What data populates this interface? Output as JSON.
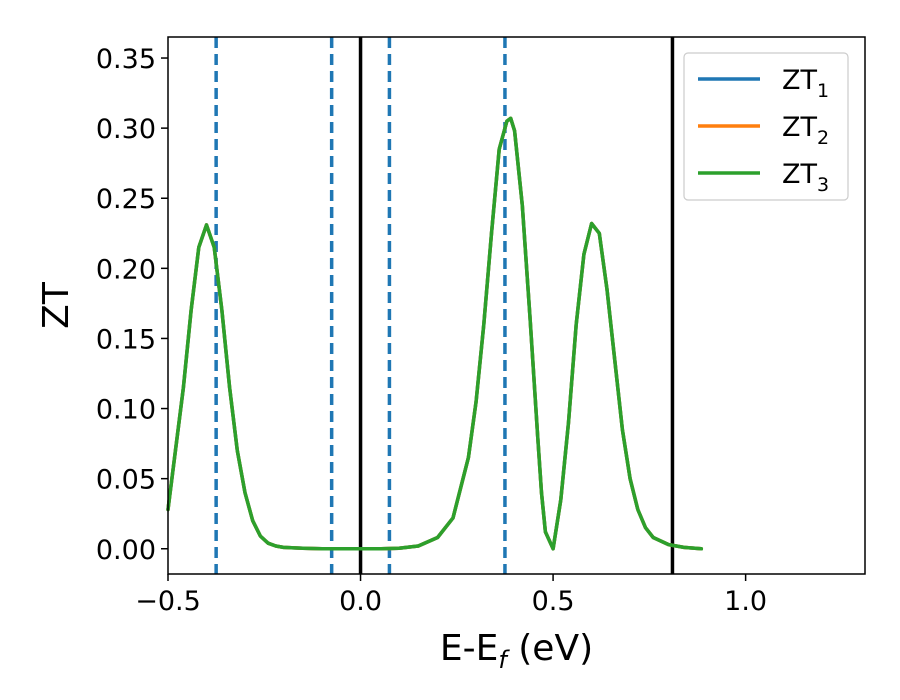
{
  "chart_data": {
    "type": "line",
    "xlabel": "E-E",
    "xlabel_sub": "f",
    "xlabel_unit": " (eV)",
    "ylabel": "ZT",
    "xlim": [
      -0.5,
      1.31
    ],
    "ylim": [
      -0.018,
      0.365
    ],
    "xticks": [
      -0.5,
      0.0,
      0.5,
      1.0
    ],
    "xtick_labels": [
      "−0.5",
      "0.0",
      "0.5",
      "1.0"
    ],
    "yticks": [
      0.0,
      0.05,
      0.1,
      0.15,
      0.2,
      0.25,
      0.3,
      0.35
    ],
    "ytick_labels": [
      "0.00",
      "0.05",
      "0.10",
      "0.15",
      "0.20",
      "0.25",
      "0.30",
      "0.35"
    ],
    "grid": false,
    "legend_position": "top-right",
    "vlines_solid": [
      0.0,
      0.81
    ],
    "vlines_dashed": [
      -0.375,
      -0.075,
      0.075,
      0.375
    ],
    "x": [
      -0.5,
      -0.46,
      -0.44,
      -0.42,
      -0.4,
      -0.38,
      -0.36,
      -0.34,
      -0.32,
      -0.3,
      -0.28,
      -0.26,
      -0.24,
      -0.22,
      -0.2,
      -0.15,
      -0.1,
      -0.05,
      0.0,
      0.05,
      0.1,
      0.15,
      0.2,
      0.24,
      0.28,
      0.3,
      0.32,
      0.34,
      0.36,
      0.38,
      0.39,
      0.4,
      0.42,
      0.44,
      0.46,
      0.47,
      0.48,
      0.5,
      0.52,
      0.54,
      0.56,
      0.58,
      0.6,
      0.62,
      0.64,
      0.66,
      0.68,
      0.7,
      0.72,
      0.74,
      0.76,
      0.8,
      0.84,
      0.885
    ],
    "series": [
      {
        "name": "ZT",
        "name_sub": "1",
        "color": "#1f77b4",
        "values": [
          0.028,
          0.115,
          0.17,
          0.215,
          0.231,
          0.215,
          0.17,
          0.115,
          0.07,
          0.04,
          0.02,
          0.009,
          0.004,
          0.002,
          0.001,
          0.0003,
          0.0,
          0.0,
          0.0,
          0.0,
          0.0003,
          0.002,
          0.008,
          0.022,
          0.065,
          0.105,
          0.16,
          0.225,
          0.285,
          0.305,
          0.307,
          0.298,
          0.245,
          0.165,
          0.08,
          0.04,
          0.012,
          0.0,
          0.035,
          0.09,
          0.16,
          0.21,
          0.232,
          0.225,
          0.185,
          0.135,
          0.085,
          0.05,
          0.028,
          0.015,
          0.008,
          0.003,
          0.001,
          0.0
        ]
      },
      {
        "name": "ZT",
        "name_sub": "2",
        "color": "#ff7f0e",
        "values": [
          0.028,
          0.115,
          0.17,
          0.215,
          0.231,
          0.215,
          0.17,
          0.115,
          0.07,
          0.04,
          0.02,
          0.009,
          0.004,
          0.002,
          0.001,
          0.0003,
          0.0,
          0.0,
          0.0,
          0.0,
          0.0003,
          0.002,
          0.008,
          0.022,
          0.065,
          0.105,
          0.16,
          0.225,
          0.285,
          0.305,
          0.307,
          0.298,
          0.245,
          0.165,
          0.08,
          0.04,
          0.012,
          0.0,
          0.035,
          0.09,
          0.16,
          0.21,
          0.232,
          0.225,
          0.185,
          0.135,
          0.085,
          0.05,
          0.028,
          0.015,
          0.008,
          0.003,
          0.001,
          0.0
        ]
      },
      {
        "name": "ZT",
        "name_sub": "3",
        "color": "#2ca02c",
        "values": [
          0.028,
          0.115,
          0.17,
          0.215,
          0.231,
          0.215,
          0.17,
          0.115,
          0.07,
          0.04,
          0.02,
          0.009,
          0.004,
          0.002,
          0.001,
          0.0003,
          0.0,
          0.0,
          0.0,
          0.0,
          0.0003,
          0.002,
          0.008,
          0.022,
          0.065,
          0.105,
          0.16,
          0.225,
          0.285,
          0.305,
          0.307,
          0.298,
          0.245,
          0.165,
          0.08,
          0.04,
          0.012,
          0.0,
          0.035,
          0.09,
          0.16,
          0.21,
          0.232,
          0.225,
          0.185,
          0.135,
          0.085,
          0.05,
          0.028,
          0.015,
          0.008,
          0.003,
          0.001,
          0.0
        ]
      }
    ],
    "dashed_line_color": "#1f77b4",
    "solid_line_color": "#000000"
  }
}
